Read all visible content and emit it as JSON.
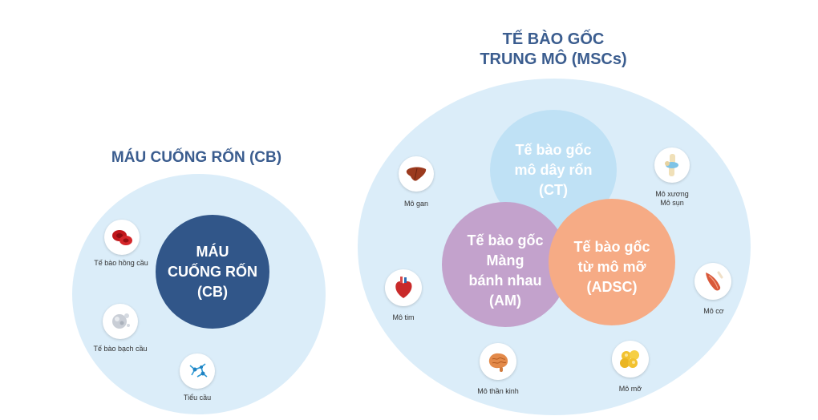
{
  "left_group": {
    "title": "MÁU CUỐNG RỐN (CB)",
    "center_lines": [
      "MÁU",
      "CUỐNG RỐN",
      "(CB)"
    ],
    "items": [
      {
        "label": "Tế bào hồng cầu",
        "icon": "red-blood-cell-icon"
      },
      {
        "label": "Tế bào bạch cầu",
        "icon": "white-blood-cell-icon"
      },
      {
        "label": "Tiểu cầu",
        "icon": "platelet-icon"
      }
    ]
  },
  "right_group": {
    "title_lines": [
      "TẾ BÀO GỐC",
      "TRUNG MÔ (MSCs)"
    ],
    "circles": [
      {
        "lines": [
          "Tế bào gốc",
          "mô dây rốn",
          "(CT)"
        ],
        "color": "#bfe1f5"
      },
      {
        "lines": [
          "Tế bào gốc",
          "Màng",
          "bánh nhau",
          "(AM)"
        ],
        "color": "#c3a2cc"
      },
      {
        "lines": [
          "Tế bào gốc",
          "từ mô mỡ",
          "(ADSC)"
        ],
        "color": "#f6ab85"
      }
    ],
    "items": [
      {
        "label": "Mô gan",
        "icon": "liver-icon"
      },
      {
        "label_lines": [
          "Mô xương",
          "Mô sụn"
        ],
        "icon": "knee-joint-icon"
      },
      {
        "label": "Mô tim",
        "icon": "heart-icon"
      },
      {
        "label": "Mô cơ",
        "icon": "muscle-icon"
      },
      {
        "label": "Mô thần kinh",
        "icon": "brain-icon"
      },
      {
        "label": "Mô mỡ",
        "icon": "fat-cells-icon"
      }
    ]
  },
  "colors": {
    "title": "#3b5d8f",
    "outer_circle": "#dbedf9",
    "cb_circle": "#315689"
  }
}
